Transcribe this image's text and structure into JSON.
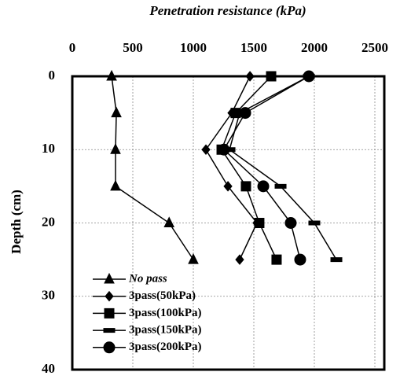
{
  "chart_data": {
    "type": "line",
    "title": "Penetration resistance (kPa)",
    "y_label": "Depth (cm)",
    "depth": [
      0,
      5,
      10,
      15,
      20,
      25
    ],
    "series": [
      {
        "name": "No pass",
        "color": "#000000",
        "marker": "triangle",
        "values": [
          325,
          364,
          357,
          357,
          800,
          1000
        ]
      },
      {
        "name": "3pass(50kPa)",
        "color": "#000000",
        "marker": "diamond",
        "values": [
          1468,
          1318,
          1104,
          1286,
          1526,
          1383
        ]
      },
      {
        "name": "3pass(100kPa)",
        "color": "#000000",
        "marker": "square",
        "values": [
          1643,
          1350,
          1234,
          1435,
          1545,
          1688
        ]
      },
      {
        "name": "3pass(150kPa)",
        "color": "#000000",
        "marker": "dash",
        "values": [
          1955,
          1383,
          1299,
          1721,
          2000,
          2182
        ]
      },
      {
        "name": "3pass(200kPa)",
        "color": "#000000",
        "marker": "circle",
        "values": [
          1955,
          1429,
          1253,
          1578,
          1805,
          1883
        ]
      }
    ],
    "xlim": [
      0,
      2500
    ],
    "xticks": [
      0,
      500,
      1000,
      1500,
      2000,
      2500
    ],
    "ylim": [
      0,
      40
    ],
    "yticks": [
      0,
      10,
      20,
      30,
      40
    ],
    "y_inverted": true,
    "grid": true,
    "legend": "lower left"
  }
}
